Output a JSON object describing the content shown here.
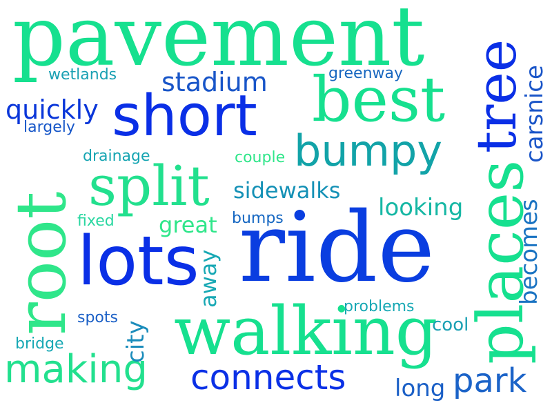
{
  "words": [
    {
      "id": "pavement",
      "text": "pavement",
      "color": "#16e08f"
    },
    {
      "id": "tree",
      "text": "tree",
      "color": "#0a2fe6"
    },
    {
      "id": "carsnice",
      "text": "carsnice",
      "color": "#1a55c8"
    },
    {
      "id": "wetlands",
      "text": "wetlands",
      "color": "#1aa0b3"
    },
    {
      "id": "stadium",
      "text": "stadium",
      "color": "#1855c8"
    },
    {
      "id": "greenway",
      "text": "greenway",
      "color": "#1867c0"
    },
    {
      "id": "best",
      "text": "best",
      "color": "#16e08f"
    },
    {
      "id": "quickly",
      "text": "quickly",
      "color": "#0a36d9"
    },
    {
      "id": "largely",
      "text": "largely",
      "color": "#1656c8"
    },
    {
      "id": "short",
      "text": "short",
      "color": "#0a2fe6"
    },
    {
      "id": "root",
      "text": "root",
      "color": "#2fe68a"
    },
    {
      "id": "drainage",
      "text": "drainage",
      "color": "#16a5b2"
    },
    {
      "id": "couple",
      "text": "couple",
      "color": "#2fe68a"
    },
    {
      "id": "bumpy",
      "text": "bumpy",
      "color": "#12a3a8"
    },
    {
      "id": "split",
      "text": "split",
      "color": "#22e08e"
    },
    {
      "id": "places",
      "text": "places",
      "color": "#16e08f"
    },
    {
      "id": "sidewalks",
      "text": "sidewalks",
      "color": "#1591b6"
    },
    {
      "id": "becomes",
      "text": "becomes",
      "color": "#1a73c2"
    },
    {
      "id": "looking",
      "text": "looking",
      "color": "#16b7a4"
    },
    {
      "id": "fixed",
      "text": "fixed",
      "color": "#2ad7a1"
    },
    {
      "id": "great",
      "text": "great",
      "color": "#2fe68a"
    },
    {
      "id": "bumps",
      "text": "bumps",
      "color": "#1567c2"
    },
    {
      "id": "ride",
      "text": "ride",
      "color": "#0a3ee0"
    },
    {
      "id": "lots",
      "text": "lots",
      "color": "#0a2fe6"
    },
    {
      "id": "away",
      "text": "away",
      "color": "#17a8b4"
    },
    {
      "id": "problems",
      "text": "problems",
      "color": "#17a8b4"
    },
    {
      "id": "spots",
      "text": "spots",
      "color": "#1a5fc6"
    },
    {
      "id": "city",
      "text": "city",
      "color": "#1a8cbb"
    },
    {
      "id": "walking",
      "text": "walking",
      "color": "#16e08f"
    },
    {
      "id": "cool",
      "text": "cool",
      "color": "#1aa0b3"
    },
    {
      "id": "bridge",
      "text": "bridge",
      "color": "#17a8b4"
    },
    {
      "id": "making",
      "text": "making",
      "color": "#22e08e"
    },
    {
      "id": "connects",
      "text": "connects",
      "color": "#0a30e6"
    },
    {
      "id": "long",
      "text": "long",
      "color": "#1a5fc6"
    },
    {
      "id": "park",
      "text": "park",
      "color": "#1b63c8"
    }
  ]
}
